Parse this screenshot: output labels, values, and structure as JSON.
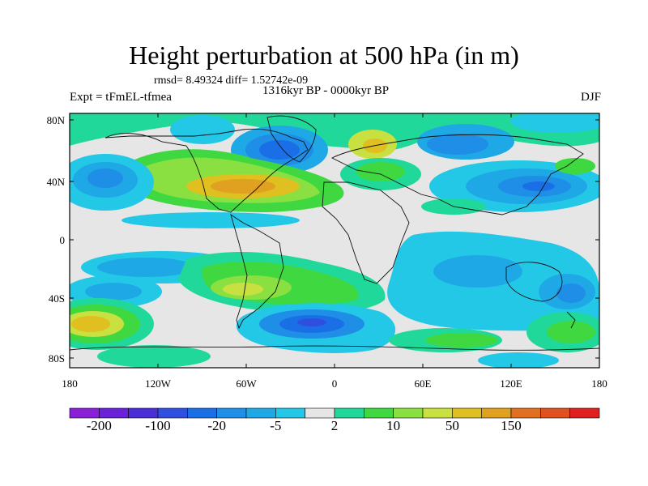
{
  "header": {
    "title": "Height perturbation at 500 hPa (in m)",
    "stats": "rmsd= 8.49324 diff= 1.52742e-09",
    "period": "1316kyr BP - 0000kyr BP",
    "experiment": "Expt = tFmEL-tfmea",
    "season": "DJF"
  },
  "axes": {
    "lat_ticks": [
      "80N",
      "40N",
      "0",
      "40S",
      "80S"
    ],
    "lon_ticks": [
      "180",
      "120W",
      "60W",
      "0",
      "60E",
      "120E",
      "180"
    ]
  },
  "colorbar": {
    "colors": [
      "#8a1fd8",
      "#6a1fd8",
      "#4a2fd8",
      "#2f4fe0",
      "#1a6ee6",
      "#1f8ee6",
      "#1fa8e6",
      "#22c8e6",
      "#e6e6e6",
      "#20d89a",
      "#40d840",
      "#8ae040",
      "#c8e040",
      "#e0c020",
      "#e0a020",
      "#e07020",
      "#e05020",
      "#e02020"
    ],
    "labels": [
      "-200",
      "-100",
      "-20",
      "-5",
      "2",
      "10",
      "50",
      "150"
    ]
  },
  "palette": {
    "neutral": "#e6e6e6",
    "pos1": "#20d89a",
    "pos2": "#40d840",
    "pos3": "#8ae040",
    "pos4": "#c8e040",
    "pos5": "#e0c020",
    "pos6": "#e0a020",
    "neg1": "#22c8e6",
    "neg2": "#1fa8e6",
    "neg3": "#1f8ee6",
    "neg4": "#1a6ee6",
    "neg5": "#2f4fe0"
  }
}
